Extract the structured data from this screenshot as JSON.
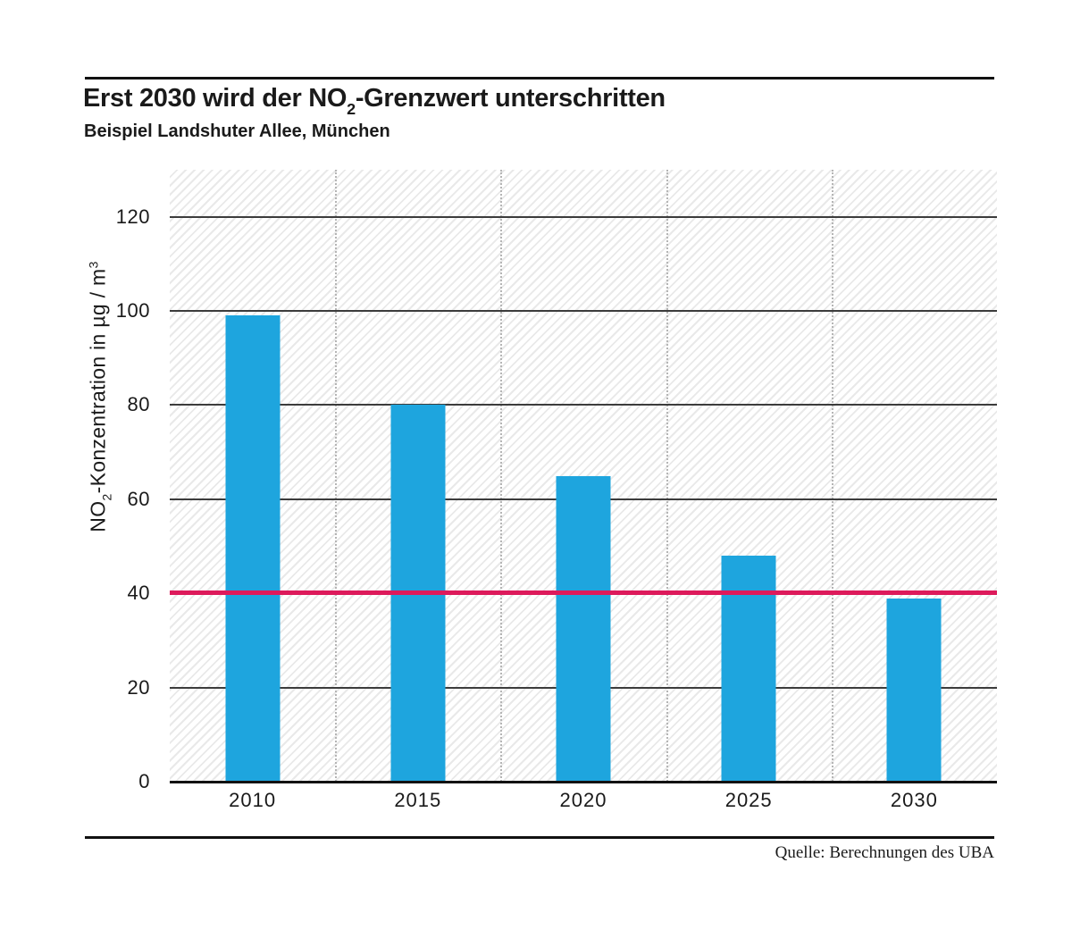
{
  "header": {
    "title_pre": "Erst 2030 wird der NO",
    "title_sub": "2",
    "title_post": "-Grenzwert unterschritten",
    "subtitle": "Beispiel Landshuter Allee, München"
  },
  "footer": {
    "source": "Quelle: Berechnungen des UBA"
  },
  "chart_data": {
    "type": "bar",
    "title": "Erst 2030 wird der NO2-Grenzwert unterschritten",
    "subtitle": "Beispiel Landshuter Allee, München",
    "categories": [
      "2010",
      "2015",
      "2020",
      "2025",
      "2030"
    ],
    "values": [
      99,
      80,
      65,
      48,
      39
    ],
    "ylabel": {
      "pre": "NO",
      "sub": "2",
      "mid": "-Konzentration in µg / m",
      "sup": "3"
    },
    "xlabel": "",
    "yticks": [
      0,
      20,
      40,
      60,
      80,
      100,
      120
    ],
    "ylim": [
      0,
      130
    ],
    "limit_line": {
      "value": 40
    },
    "grid": "horizontal solid lines on; vertical dotted category separators on; hatched plot background",
    "legend_position": "none",
    "colors": {
      "bar": "#1ea5de",
      "limit": "#dd1a5b",
      "grid": "#3c3c3c",
      "axis": "#121212",
      "hatch": "#e9e9e9",
      "dotted": "#b5b5b5"
    }
  }
}
